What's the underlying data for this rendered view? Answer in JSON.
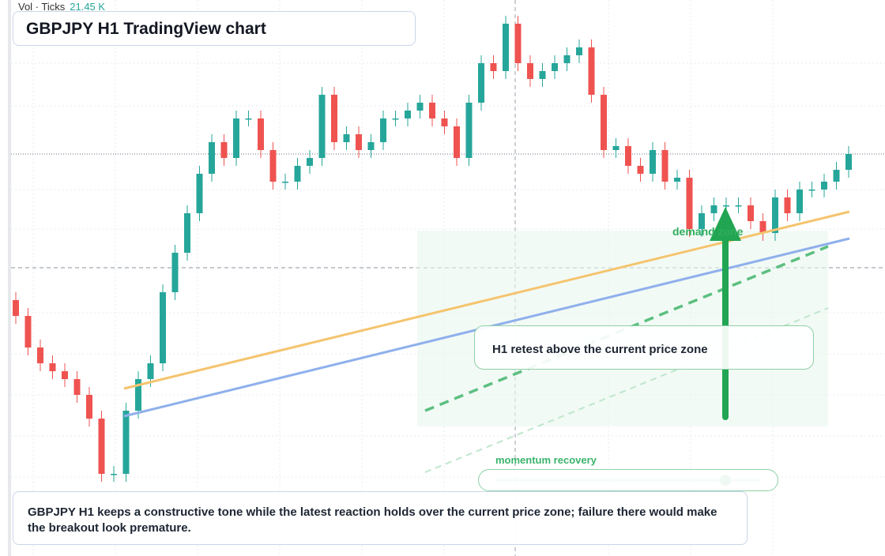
{
  "chart_data": {
    "type": "candlestick",
    "color_up": "#26a69a",
    "color_down": "#ef5350",
    "ylim": [
      0,
      704
    ],
    "open": [
      324,
      304,
      264,
      244,
      234,
      224,
      204,
      174,
      104,
      104,
      184,
      224,
      244,
      334,
      384,
      434,
      484,
      524,
      504,
      554,
      554,
      514,
      474,
      474,
      494,
      504,
      584,
      524,
      534,
      514,
      524,
      554,
      554,
      564,
      574,
      554,
      544,
      504,
      574,
      624,
      614,
      674,
      624,
      604,
      614,
      624,
      634,
      644,
      584,
      514,
      519,
      494,
      484,
      514,
      474,
      479,
      414,
      434,
      444,
      444,
      444,
      424,
      409,
      454,
      434,
      464,
      464,
      474,
      489
    ],
    "high": [
      334,
      314,
      274,
      254,
      244,
      234,
      214,
      184,
      114,
      194,
      234,
      254,
      344,
      394,
      444,
      494,
      534,
      534,
      564,
      564,
      564,
      524,
      484,
      504,
      514,
      594,
      594,
      544,
      544,
      534,
      564,
      564,
      574,
      584,
      584,
      564,
      554,
      584,
      634,
      634,
      684,
      684,
      634,
      624,
      634,
      644,
      654,
      654,
      594,
      529,
      529,
      504,
      524,
      524,
      489,
      489,
      444,
      454,
      454,
      454,
      454,
      434,
      464,
      464,
      474,
      474,
      484,
      499,
      519
    ],
    "low": [
      294,
      254,
      234,
      224,
      214,
      194,
      164,
      94,
      94,
      94,
      174,
      214,
      234,
      324,
      374,
      424,
      474,
      494,
      494,
      544,
      504,
      464,
      464,
      464,
      484,
      494,
      514,
      514,
      504,
      504,
      514,
      544,
      544,
      554,
      544,
      534,
      494,
      494,
      564,
      604,
      604,
      614,
      594,
      594,
      604,
      614,
      624,
      574,
      504,
      504,
      484,
      474,
      474,
      464,
      464,
      404,
      404,
      424,
      434,
      434,
      414,
      399,
      399,
      424,
      424,
      454,
      454,
      464,
      479
    ],
    "close": [
      304,
      264,
      244,
      234,
      224,
      204,
      174,
      104,
      104,
      184,
      224,
      244,
      334,
      384,
      434,
      484,
      524,
      504,
      554,
      554,
      514,
      474,
      474,
      494,
      504,
      584,
      524,
      534,
      514,
      524,
      554,
      554,
      564,
      574,
      554,
      544,
      504,
      574,
      624,
      614,
      674,
      624,
      604,
      614,
      624,
      634,
      644,
      584,
      514,
      519,
      494,
      484,
      514,
      474,
      479,
      414,
      434,
      444,
      444,
      444,
      424,
      409,
      454,
      434,
      464,
      464,
      474,
      489,
      509
    ]
  },
  "header": {
    "vol_label": "Vol · Ticks",
    "vol_value": "21.45 K",
    "title": "GBPJPY H1 TradingView chart"
  },
  "annotations": {
    "zone": "demand zone",
    "note": "H1 retest above the current price zone",
    "slider": "momentum recovery"
  },
  "caption": "GBPJPY H1 keeps a constructive tone while the latest reaction holds over the current price zone; failure there would make the breakout look premature."
}
